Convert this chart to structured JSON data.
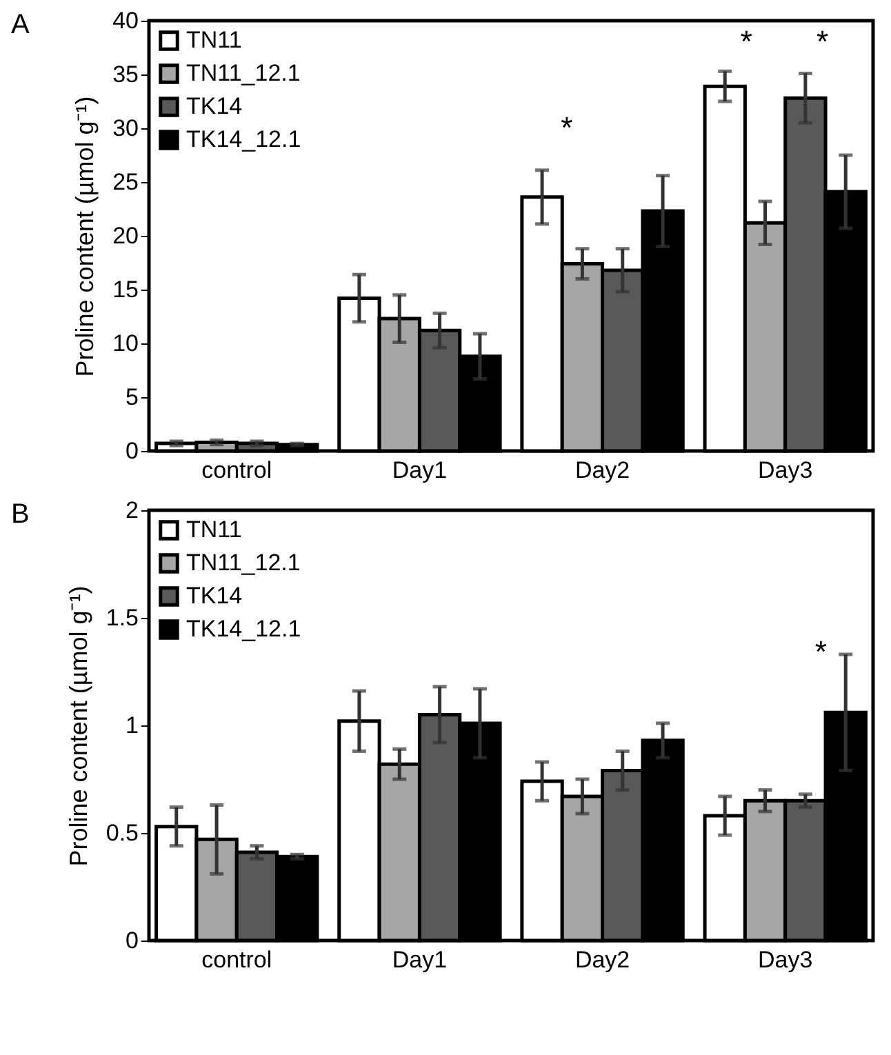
{
  "chart_data": [
    {
      "type": "bar",
      "title": "A",
      "ylabel": "Proline content (µmol g⁻¹)",
      "categories": [
        "control",
        "Day1",
        "Day2",
        "Day3"
      ],
      "ylim": [
        0,
        40
      ],
      "yticks": [
        0,
        5,
        10,
        15,
        20,
        25,
        30,
        35,
        40
      ],
      "grid": false,
      "legend": "top left",
      "series": [
        {
          "name": "TN11",
          "color": "#ffffff",
          "values": [
            0.7,
            14.2,
            23.6,
            33.9
          ],
          "errors": [
            0.2,
            2.2,
            2.5,
            1.4
          ]
        },
        {
          "name": "TN11_12.1",
          "color": "#a6a6a6",
          "values": [
            0.8,
            12.3,
            17.4,
            21.2
          ],
          "errors": [
            0.2,
            2.2,
            1.4,
            2.0
          ]
        },
        {
          "name": "TK14",
          "color": "#595959",
          "values": [
            0.7,
            11.2,
            16.8,
            32.8
          ],
          "errors": [
            0.2,
            1.6,
            2.0,
            2.3
          ]
        },
        {
          "name": "TK14_12.1",
          "color": "#000000",
          "values": [
            0.6,
            8.8,
            22.3,
            24.1
          ],
          "errors": [
            0.1,
            2.1,
            3.3,
            3.4
          ]
        }
      ],
      "annotations": [
        "*",
        "*",
        "*"
      ]
    },
    {
      "type": "bar",
      "title": "B",
      "ylabel": "Proline content (µmol g⁻¹)",
      "categories": [
        "control",
        "Day1",
        "Day2",
        "Day3"
      ],
      "ylim": [
        0,
        2
      ],
      "yticks": [
        {
          "value": 0,
          "label": "0"
        },
        0.5,
        {
          "value": 1,
          "label": "1"
        },
        1.5,
        {
          "value": 2,
          "label": "2"
        }
      ],
      "grid": false,
      "legend": "top left",
      "series": [
        {
          "name": "TN11",
          "color": "#ffffff",
          "values": [
            0.53,
            1.02,
            0.74,
            0.58
          ],
          "errors": [
            0.09,
            0.14,
            0.09,
            0.09
          ]
        },
        {
          "name": "TN11_12.1",
          "color": "#a6a6a6",
          "values": [
            0.47,
            0.82,
            0.67,
            0.65
          ],
          "errors": [
            0.16,
            0.07,
            0.08,
            0.05
          ]
        },
        {
          "name": "TK14",
          "color": "#595959",
          "values": [
            0.41,
            1.05,
            0.79,
            0.65
          ],
          "errors": [
            0.03,
            0.13,
            0.09,
            0.03
          ]
        },
        {
          "name": "TK14_12.1",
          "color": "#000000",
          "values": [
            0.39,
            1.01,
            0.93,
            1.06
          ],
          "errors": [
            0.01,
            0.16,
            0.08,
            0.27
          ]
        }
      ],
      "annotations": [
        "*"
      ]
    }
  ]
}
